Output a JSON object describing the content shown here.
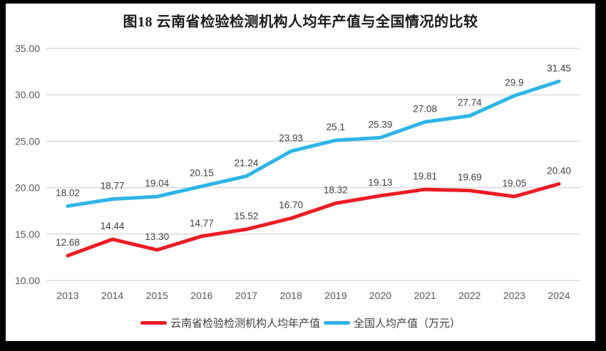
{
  "chart_data": {
    "type": "line",
    "title": "图18 云南省检验检测机构人均年产值与全国情况的比较",
    "categories": [
      "2013",
      "2014",
      "2015",
      "2016",
      "2017",
      "2018",
      "2019",
      "2020",
      "2021",
      "2022",
      "2023",
      "2024"
    ],
    "series": [
      {
        "name": "云南省检验检测机构人均年产值",
        "color": "#ED1C24",
        "values": [
          12.68,
          14.44,
          13.3,
          14.77,
          15.52,
          16.7,
          18.32,
          19.13,
          19.81,
          19.69,
          19.05,
          20.4
        ],
        "labels": [
          "12.68",
          "14.44",
          "13.30",
          "14.77",
          "15.52",
          "16.70",
          "18.32",
          "19.13",
          "19.81",
          "19.69",
          "19.05",
          "20.40"
        ]
      },
      {
        "name": "全国人均产值（万元）",
        "color": "#2EB5E8",
        "values": [
          18.02,
          18.77,
          19.04,
          20.15,
          21.24,
          23.93,
          25.1,
          25.39,
          27.08,
          27.74,
          29.9,
          31.45
        ],
        "labels": [
          "18.02",
          "18.77",
          "19.04",
          "20.15",
          "21.24",
          "23.93",
          "25.1",
          "25.39",
          "27.08",
          "27.74",
          "29.9",
          "31.45"
        ]
      }
    ],
    "ylim": [
      10,
      35
    ],
    "ytick_labels": [
      "10.00",
      "15.00",
      "20.00",
      "25.00",
      "30.00",
      "35.00"
    ],
    "grid": "horizontal",
    "legend_position": "bottom",
    "colors": {
      "gridline": "#D9D9D9",
      "axis_text": "#595959",
      "data_label": "#404040",
      "title_text": "#1A1A1A",
      "photo_border": "#000000",
      "page_background": "#FFFFFF"
    }
  }
}
